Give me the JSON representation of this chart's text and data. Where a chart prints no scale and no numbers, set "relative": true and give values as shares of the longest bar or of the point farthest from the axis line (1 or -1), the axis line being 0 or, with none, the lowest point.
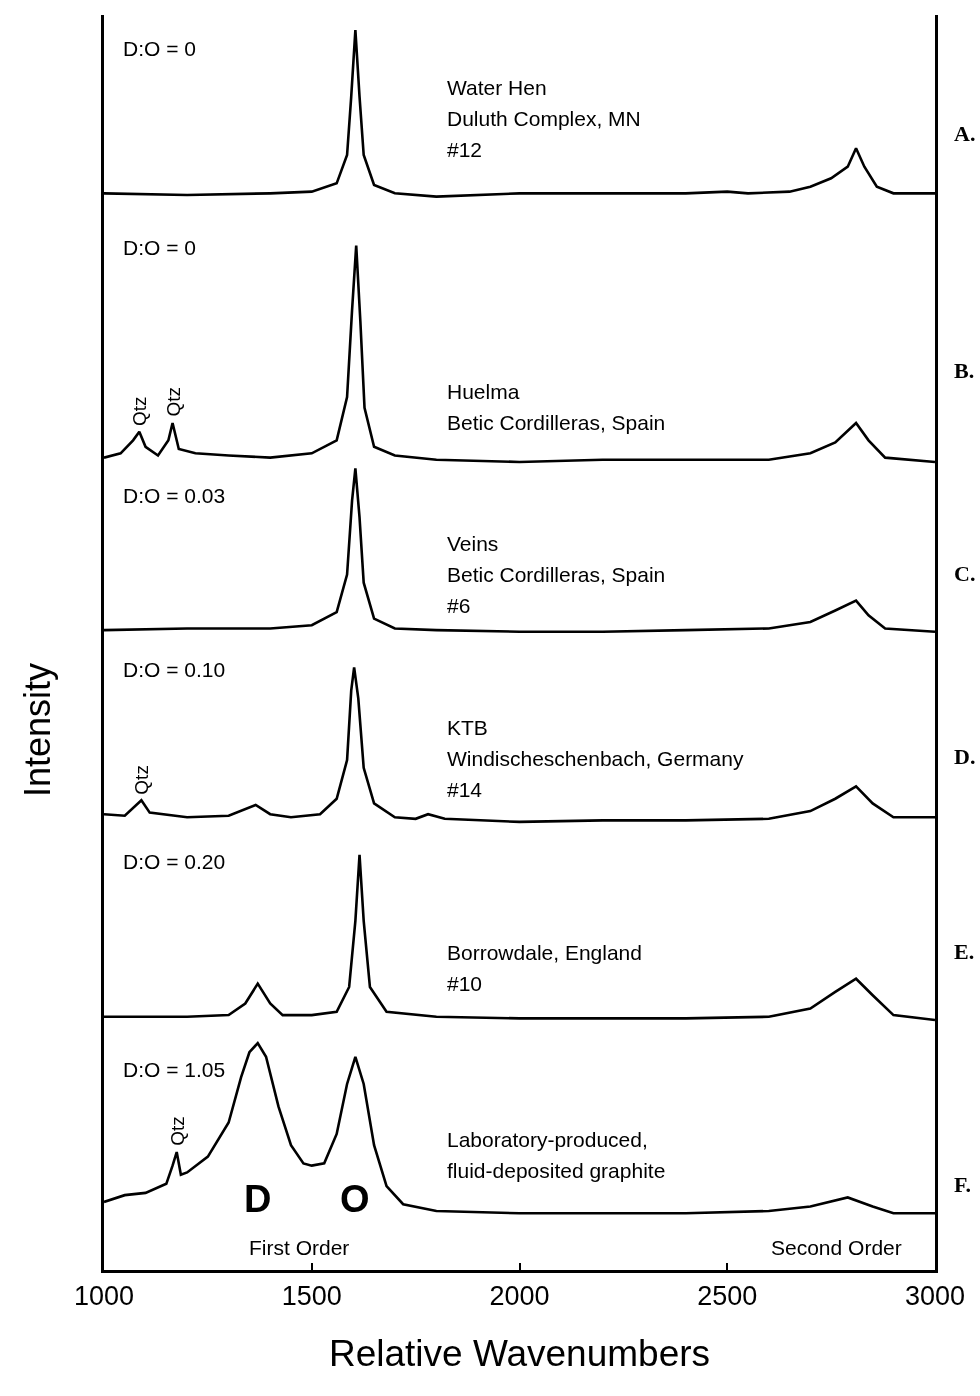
{
  "chart_data": [
    {
      "type": "line",
      "relative": true,
      "tick_labels": false,
      "marker": "none",
      "line_style": "solid",
      "xlim": [
        1000,
        3000
      ],
      "xticks": [
        1000,
        1500,
        2000,
        2500,
        3000
      ],
      "x": [
        1000,
        1200,
        1400,
        1500,
        1560,
        1585,
        1595,
        1605,
        1615,
        1625,
        1650,
        1700,
        1800,
        2000,
        2200,
        2400,
        2500,
        2550,
        2650,
        2700,
        2750,
        2790,
        2810,
        2830,
        2860,
        2900,
        3000
      ],
      "series": [
        {
          "color": "#000000",
          "values": [
            0.02,
            0.01,
            0.02,
            0.03,
            0.08,
            0.25,
            0.6,
            1.0,
            0.6,
            0.25,
            0.07,
            0.02,
            0,
            0.02,
            0.02,
            0.02,
            0.03,
            0.02,
            0.03,
            0.06,
            0.11,
            0.18,
            0.29,
            0.18,
            0.06,
            0.02,
            0.02
          ]
        }
      ],
      "annotations": [
        "D:O = 0",
        "A.",
        "Water Hen",
        "Duluth Complex, MN",
        "#12"
      ]
    },
    {
      "type": "line",
      "relative": true,
      "tick_labels": false,
      "marker": "none",
      "line_style": "solid",
      "xlim": [
        1000,
        3000
      ],
      "xticks": [
        1000,
        1500,
        2000,
        2500,
        3000
      ],
      "x": [
        1000,
        1040,
        1070,
        1085,
        1100,
        1130,
        1155,
        1165,
        1180,
        1220,
        1300,
        1400,
        1500,
        1560,
        1585,
        1597,
        1607,
        1617,
        1627,
        1650,
        1700,
        1800,
        2000,
        2200,
        2400,
        2600,
        2700,
        2760,
        2810,
        2840,
        2880,
        3000
      ],
      "series": [
        {
          "color": "#000000",
          "values": [
            0.02,
            0.04,
            0.1,
            0.14,
            0.07,
            0.03,
            0.1,
            0.18,
            0.06,
            0.04,
            0.03,
            0.02,
            0.04,
            0.1,
            0.3,
            0.7,
            1.0,
            0.65,
            0.25,
            0.07,
            0.03,
            0.01,
            0,
            0.01,
            0.01,
            0.01,
            0.04,
            0.09,
            0.18,
            0.1,
            0.02,
            0
          ]
        }
      ],
      "annotations": [
        "D:O = 0",
        "B.",
        "Huelma",
        "Betic Cordilleras, Spain",
        {
          "text": "Qtz",
          "x": 1085,
          "y": 0.14
        },
        {
          "text": "Qtz",
          "x": 1165,
          "y": 0.18
        }
      ]
    },
    {
      "type": "line",
      "relative": true,
      "tick_labels": false,
      "marker": "none",
      "line_style": "solid",
      "xlim": [
        1000,
        3000
      ],
      "xticks": [
        1000,
        1500,
        2000,
        2500,
        3000
      ],
      "x": [
        1000,
        1200,
        1400,
        1500,
        1560,
        1585,
        1597,
        1605,
        1615,
        1625,
        1650,
        1700,
        1800,
        2000,
        2200,
        2400,
        2600,
        2700,
        2760,
        2810,
        2840,
        2880,
        3000
      ],
      "series": [
        {
          "color": "#000000",
          "values": [
            0.01,
            0.02,
            0.02,
            0.04,
            0.12,
            0.35,
            0.8,
            1.0,
            0.7,
            0.3,
            0.08,
            0.02,
            0.01,
            0,
            0,
            0.01,
            0.02,
            0.06,
            0.13,
            0.19,
            0.1,
            0.02,
            0
          ]
        }
      ],
      "annotations": [
        "D:O = 0.03",
        "C.",
        "Veins",
        "Betic Cordilleras, Spain",
        "#6"
      ]
    },
    {
      "type": "line",
      "relative": true,
      "tick_labels": false,
      "marker": "none",
      "line_style": "solid",
      "ylabel": "Intensity",
      "xlim": [
        1000,
        3000
      ],
      "xticks": [
        1000,
        1500,
        2000,
        2500,
        3000
      ],
      "x": [
        1000,
        1050,
        1090,
        1110,
        1200,
        1300,
        1365,
        1400,
        1450,
        1520,
        1560,
        1585,
        1595,
        1602,
        1612,
        1625,
        1650,
        1700,
        1750,
        1780,
        1820,
        2000,
        2200,
        2400,
        2600,
        2700,
        2760,
        2810,
        2850,
        2900,
        3000
      ],
      "series": [
        {
          "color": "#000000",
          "values": [
            0.05,
            0.04,
            0.14,
            0.06,
            0.03,
            0.04,
            0.11,
            0.05,
            0.03,
            0.05,
            0.15,
            0.4,
            0.85,
            1.0,
            0.8,
            0.35,
            0.12,
            0.03,
            0.02,
            0.05,
            0.02,
            0,
            0.01,
            0.01,
            0.02,
            0.07,
            0.15,
            0.23,
            0.12,
            0.03,
            0.03
          ]
        }
      ],
      "annotations": [
        "D:O = 0.10",
        "D.",
        "KTB",
        "Windischeschenbach, Germany",
        "#14",
        {
          "text": "Qtz",
          "x": 1090,
          "y": 0.14
        }
      ]
    },
    {
      "type": "line",
      "relative": true,
      "tick_labels": false,
      "marker": "none",
      "line_style": "solid",
      "xlim": [
        1000,
        3000
      ],
      "xticks": [
        1000,
        1500,
        2000,
        2500,
        3000
      ],
      "x": [
        1000,
        1200,
        1300,
        1340,
        1370,
        1400,
        1430,
        1500,
        1560,
        1590,
        1605,
        1615,
        1625,
        1640,
        1680,
        1800,
        2000,
        2200,
        2400,
        2600,
        2700,
        2760,
        2810,
        2850,
        2900,
        3000
      ],
      "series": [
        {
          "color": "#000000",
          "values": [
            0.02,
            0.02,
            0.03,
            0.1,
            0.22,
            0.1,
            0.03,
            0.03,
            0.05,
            0.2,
            0.6,
            1.0,
            0.6,
            0.2,
            0.05,
            0.02,
            0.01,
            0.01,
            0.01,
            0.02,
            0.07,
            0.17,
            0.25,
            0.15,
            0.03,
            0
          ]
        }
      ],
      "annotations": [
        "D:O = 0.20",
        "E.",
        "Borrowdale, England",
        "#10"
      ]
    },
    {
      "type": "line",
      "relative": true,
      "tick_labels": "x",
      "marker": "none",
      "line_style": "solid",
      "xlabel": "Relative Wavenumbers",
      "xlim": [
        1000,
        3000
      ],
      "xticks": [
        1000,
        1500,
        2000,
        2500,
        3000
      ],
      "x": [
        1000,
        1050,
        1100,
        1150,
        1165,
        1175,
        1185,
        1200,
        1250,
        1300,
        1330,
        1350,
        1370,
        1390,
        1420,
        1450,
        1480,
        1500,
        1530,
        1560,
        1585,
        1605,
        1625,
        1650,
        1680,
        1720,
        1800,
        2000,
        2200,
        2400,
        2600,
        2700,
        2790,
        2850,
        2900,
        3000
      ],
      "series": [
        {
          "color": "#000000",
          "values": [
            0.3,
            0.33,
            0.34,
            0.38,
            0.46,
            0.52,
            0.42,
            0.43,
            0.5,
            0.65,
            0.85,
            0.96,
            1.0,
            0.94,
            0.72,
            0.55,
            0.47,
            0.46,
            0.47,
            0.6,
            0.82,
            0.94,
            0.82,
            0.55,
            0.37,
            0.29,
            0.26,
            0.25,
            0.25,
            0.25,
            0.26,
            0.28,
            0.32,
            0.28,
            0.25,
            0.25
          ]
        }
      ],
      "annotations": [
        "D:O = 1.05",
        "F.",
        "Laboratory-produced,",
        "fluid-deposited graphite",
        {
          "text": "Qtz",
          "x": 1175,
          "y": 0.52
        },
        "D",
        "O",
        "First Order",
        "Second Order"
      ]
    }
  ]
}
